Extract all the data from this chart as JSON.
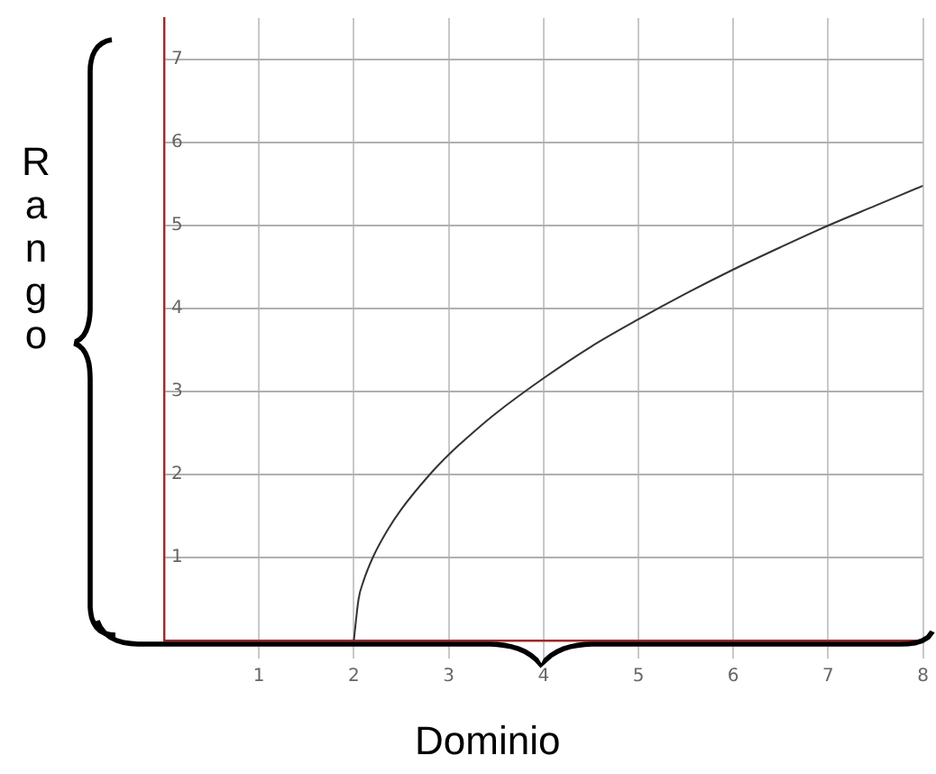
{
  "chart_data": {
    "type": "line",
    "xlabel": "Dominio",
    "ylabel": "Rango",
    "series": [
      {
        "color": "#333333",
        "x": [
          2,
          2.05,
          2.1,
          2.2,
          2.35,
          2.5,
          2.8,
          3,
          3.3,
          3.5,
          4,
          4.5,
          5,
          5.5,
          6,
          6.5,
          7,
          7.5,
          8
        ],
        "values": [
          0,
          0.5,
          0.71,
          1,
          1.32,
          1.58,
          2,
          2.24,
          2.55,
          2.74,
          3.16,
          3.54,
          3.87,
          4.18,
          4.47,
          4.74,
          5,
          5.24,
          5.48
        ]
      }
    ],
    "xlim": [
      0,
      8
    ],
    "xticks": [
      1,
      2,
      3,
      4,
      5,
      6,
      7,
      8
    ],
    "ylim": [
      0,
      7.5
    ],
    "yticks": [
      1,
      2,
      3,
      4,
      5,
      6,
      7
    ],
    "grid": true,
    "legend": false,
    "marker": "none",
    "line_style": "solid"
  }
}
